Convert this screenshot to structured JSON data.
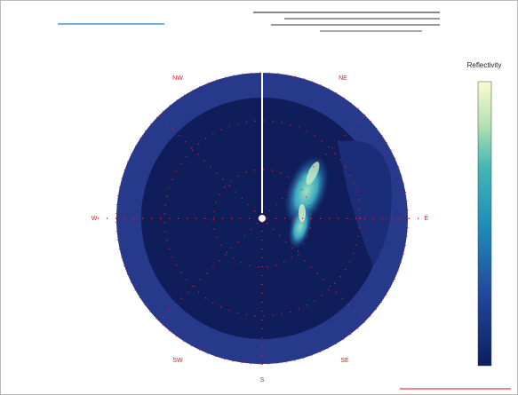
{
  "colorbar": {
    "title": "Reflectivity"
  },
  "compass": [
    "NW",
    "NE",
    "W",
    "E",
    "SW",
    "SE",
    "S"
  ]
}
